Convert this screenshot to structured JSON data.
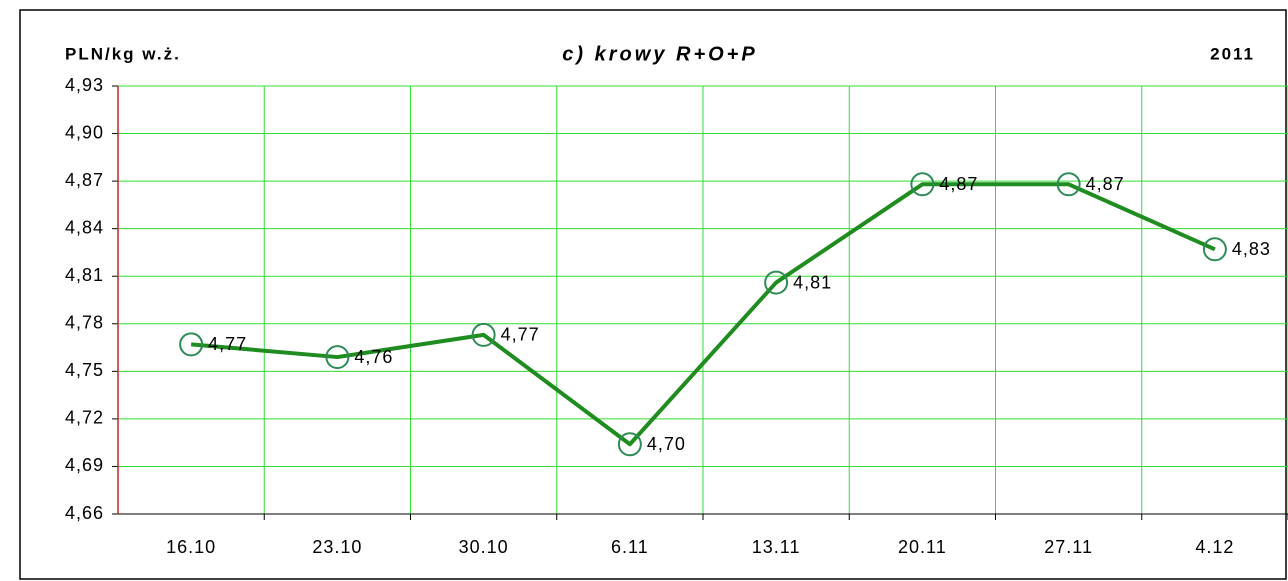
{
  "chart_data": {
    "type": "line",
    "title": "c) krowy R+O+P",
    "y_axis_label": "PLN/kg w.ż.",
    "year": "2011",
    "categories": [
      "16.10",
      "23.10",
      "30.10",
      "6.11",
      "13.11",
      "20.11",
      "27.11",
      "4.12"
    ],
    "series": [
      {
        "name": "krowy R+O+P",
        "color": "#1e8c1e",
        "marker_color": "#2e8b57",
        "values": [
          4.767,
          4.759,
          4.773,
          4.704,
          4.806,
          4.868,
          4.868,
          4.827
        ],
        "value_labels": [
          "4,77",
          "4,76",
          "4,77",
          "4,70",
          "4,81",
          "4,87",
          "4,87",
          "4,83"
        ]
      }
    ],
    "ylim": [
      4.66,
      4.93
    ],
    "yticks": [
      {
        "value": 4.66,
        "label": "4,66"
      },
      {
        "value": 4.69,
        "label": "4,69"
      },
      {
        "value": 4.72,
        "label": "4,72"
      },
      {
        "value": 4.75,
        "label": "4,75"
      },
      {
        "value": 4.78,
        "label": "4,78"
      },
      {
        "value": 4.81,
        "label": "4,81"
      },
      {
        "value": 4.84,
        "label": "4,84"
      },
      {
        "value": 4.87,
        "label": "4,87"
      },
      {
        "value": 4.9,
        "label": "4,90"
      },
      {
        "value": 4.93,
        "label": "4,93"
      }
    ],
    "grid": true,
    "grid_color": "#33dd33"
  }
}
